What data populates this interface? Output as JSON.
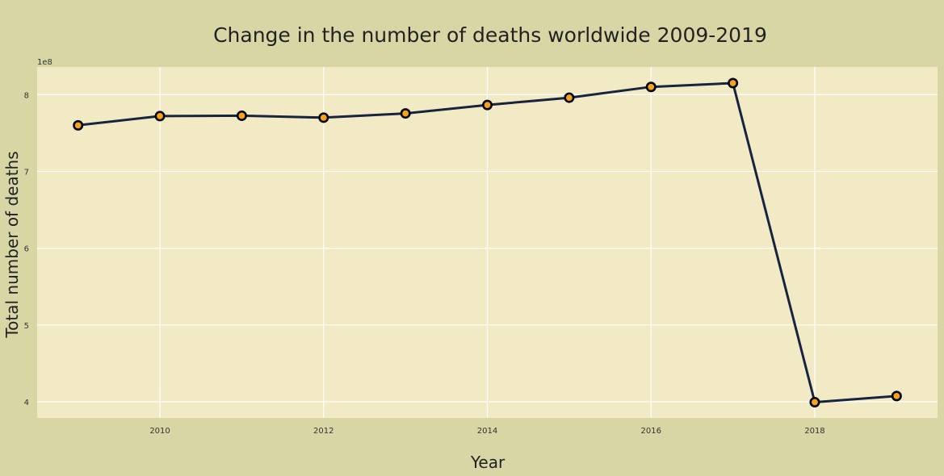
{
  "chart_data": {
    "type": "line",
    "title": "Change in the number of deaths worldwide 2009-2019",
    "xlabel": "Year",
    "ylabel": "Total number of deaths",
    "y_scale_note": "1e8",
    "x": [
      2009,
      2010,
      2011,
      2012,
      2013,
      2014,
      2015,
      2016,
      2017,
      2018,
      2019
    ],
    "series": [
      {
        "values": [
          760000000,
          772000000,
          772500000,
          770000000,
          775500000,
          786500000,
          796000000,
          810000000,
          815000000,
          399500000,
          407500000
        ]
      }
    ],
    "x_ticks": [
      2010,
      2012,
      2014,
      2016,
      2018
    ],
    "x_tick_labels": [
      "2010",
      "2012",
      "2014",
      "2016",
      "2018"
    ],
    "y_ticks": [
      400000000,
      500000000,
      600000000,
      700000000,
      800000000
    ],
    "y_tick_labels": [
      "4",
      "5",
      "6",
      "7",
      "8"
    ],
    "xlim": [
      2008.5,
      2019.5
    ],
    "ylim": [
      379000000,
      836000000
    ],
    "grid": true,
    "colors": {
      "figure_background": "#d9d6a6",
      "plot_background": "#f2eac5",
      "line": "#17243f",
      "marker_fill": "#f5a31a",
      "marker_edge": "#000000",
      "grid": "#ffffff"
    }
  }
}
